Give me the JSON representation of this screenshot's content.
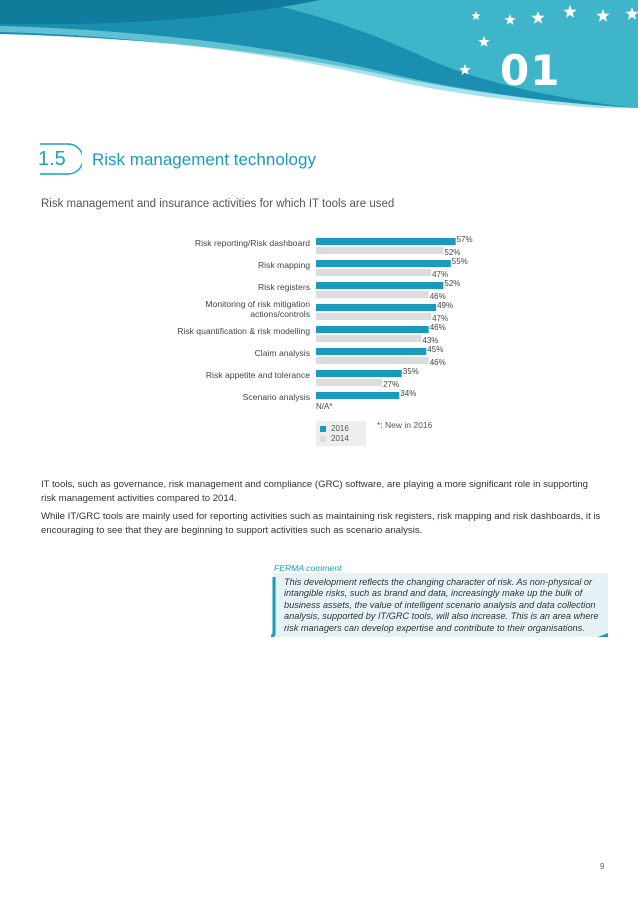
{
  "header": {
    "chapter_number": "01",
    "colors": {
      "band_dark": "#1a8fb0",
      "band_light": "#4fc3d3",
      "stars": "#ffffff"
    }
  },
  "section": {
    "number": "1.5",
    "title": "Risk management technology",
    "color": "#1a9bbd"
  },
  "chart_caption": "Risk management and insurance activities for which IT tools are used",
  "chart_data": {
    "type": "bar",
    "orientation": "horizontal",
    "categories": [
      "Risk reporting/Risk dashboard",
      "Risk mapping",
      "Risk registers",
      "Monitoring of risk mitigation actions/controls",
      "Risk quantification & risk modelling",
      "Claim analysis",
      "Risk appetite and tolerance",
      "Scenario analysis"
    ],
    "category_lines": [
      [
        "Risk reporting/Risk dashboard"
      ],
      [
        "Risk mapping"
      ],
      [
        "Risk registers"
      ],
      [
        "Monitoring of risk mitigation",
        "actions/controls"
      ],
      [
        "Risk quantification & risk modelling"
      ],
      [
        "Claim analysis"
      ],
      [
        "Risk appetite and tolerance"
      ],
      [
        "Scenario analysis"
      ]
    ],
    "series": [
      {
        "name": "2016",
        "color": "#1a9bbd",
        "values": [
          57,
          55,
          52,
          49,
          46,
          45,
          35,
          34
        ]
      },
      {
        "name": "2014",
        "color": "#dcdcdc",
        "values": [
          52,
          47,
          46,
          47,
          43,
          46,
          27,
          null
        ]
      }
    ],
    "value_labels_2016": [
      "57%",
      "55%",
      "52%",
      "49%",
      "46%",
      "45%",
      "35%",
      "34%"
    ],
    "value_labels_2014": [
      "52%",
      "47%",
      "46%",
      "47%",
      "43%",
      "46%",
      "27%",
      "N/A*"
    ],
    "legend": [
      "2016",
      "2014"
    ],
    "legend_position": "bottom-left",
    "note": "*: New in 2016",
    "xlim": [
      0,
      60
    ]
  },
  "paragraphs": [
    "IT tools, such as governance, risk management and compliance (GRC) software, are playing a more significant role in supporting risk management activities compared to 2014.",
    "While IT/GRC tools are mainly used for reporting activities such as maintaining risk registers, risk mapping and risk dashboards, it is encouraging to see that they are beginning to support activities such as scenario analysis."
  ],
  "ferma": {
    "label": "FERMA comment",
    "text": "This development reflects the changing character of risk. As non-physical or intangible risks, such as brand and data, increasingly make up the bulk of business assets, the value of intelligent scenario analysis and data collection analysis, supported by IT/GRC tools, will also increase. This is an area where risk managers can develop expertise and contribute to their organisations.",
    "box_color": "#e5f3f6"
  },
  "page_number": "9"
}
